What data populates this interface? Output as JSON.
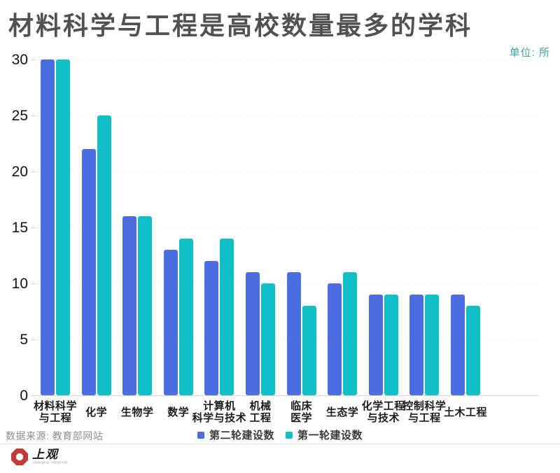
{
  "title": "材料科学与工程是高校数量最多的学科",
  "unit_label": "单位: 所",
  "source": "数据来源: 教育部网站",
  "footer": {
    "logo_name": "上观",
    "logo_subtext": "Shanghai Observer"
  },
  "colors": {
    "series_round2_blue": "#4a6ee0",
    "series_round1_teal": "#10bfc8",
    "unit_label": "#3aa6a0",
    "logo_red": "#c23a3a"
  },
  "chart_data": {
    "type": "bar",
    "title": "材料科学与工程是高校数量最多的学科",
    "ylabel_unit": "单位: 所",
    "categories": [
      "材料科学与工程",
      "化学",
      "生物学",
      "数学",
      "计算机科学与技术",
      "机械工程",
      "临床医学",
      "生态学",
      "化学工程与技术",
      "控制科学与工程",
      "土木工程"
    ],
    "category_lines": [
      [
        "材料科学",
        "与工程"
      ],
      [
        "化学"
      ],
      [
        "生物学"
      ],
      [
        "数学"
      ],
      [
        "计算机",
        "科学与技术"
      ],
      [
        "机械",
        "工程"
      ],
      [
        "临床",
        "医学"
      ],
      [
        "生态学"
      ],
      [
        "化学工程",
        "与技术"
      ],
      [
        "控制科学",
        "与工程"
      ],
      [
        "土木工程"
      ]
    ],
    "series": [
      {
        "name": "第二轮建设数",
        "color": "#4a6ee0",
        "values": [
          30,
          22,
          16,
          13,
          12,
          11,
          11,
          10,
          9,
          9,
          9
        ]
      },
      {
        "name": "第一轮建设数",
        "color": "#10bfc8",
        "values": [
          30,
          25,
          16,
          14,
          14,
          10,
          8,
          11,
          9,
          9,
          8
        ]
      }
    ],
    "ylim": [
      0,
      30
    ],
    "yticks": [
      0,
      5,
      10,
      15,
      20,
      25,
      30
    ],
    "grid": "horizontal-dashed",
    "legend_position": "bottom-center"
  }
}
